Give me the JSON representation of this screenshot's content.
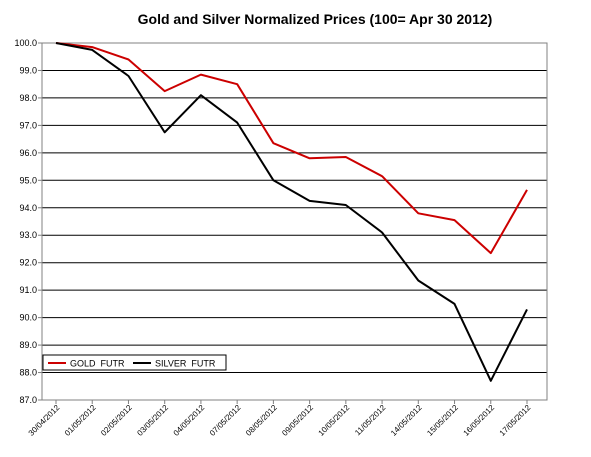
{
  "chart_data": {
    "type": "line",
    "title": "Gold and Silver Normalized Prices  (100= Apr 30 2012)",
    "xlabel": "",
    "ylabel": "",
    "categories": [
      "30/04/2012",
      "01/05/2012",
      "02/05/2012",
      "03/05/2012",
      "04/05/2012",
      "07/05/2012",
      "08/05/2012",
      "09/05/2012",
      "10/05/2012",
      "11/05/2012",
      "14/05/2012",
      "15/05/2012",
      "16/05/2012",
      "17/05/2012"
    ],
    "ylim": [
      87.0,
      100.0
    ],
    "yticks": [
      "100.0",
      "99.0",
      "98.0",
      "97.0",
      "96.0",
      "95.0",
      "94.0",
      "93.0",
      "92.0",
      "91.0",
      "90.0",
      "89.0",
      "88.0",
      "87.0"
    ],
    "grid": "horizontal",
    "legend": "bottom-left",
    "series": [
      {
        "name": "GOLD  FUTR",
        "color": "#cc0000",
        "values": [
          100.0,
          99.85,
          99.4,
          98.25,
          98.85,
          98.5,
          96.35,
          95.8,
          95.85,
          95.15,
          93.8,
          93.55,
          92.35,
          94.65
        ]
      },
      {
        "name": "SILVER  FUTR",
        "color": "#000000",
        "values": [
          100.0,
          99.75,
          98.8,
          96.75,
          98.1,
          97.1,
          95.0,
          94.25,
          94.1,
          93.1,
          91.35,
          90.5,
          87.7,
          90.3
        ]
      }
    ]
  }
}
